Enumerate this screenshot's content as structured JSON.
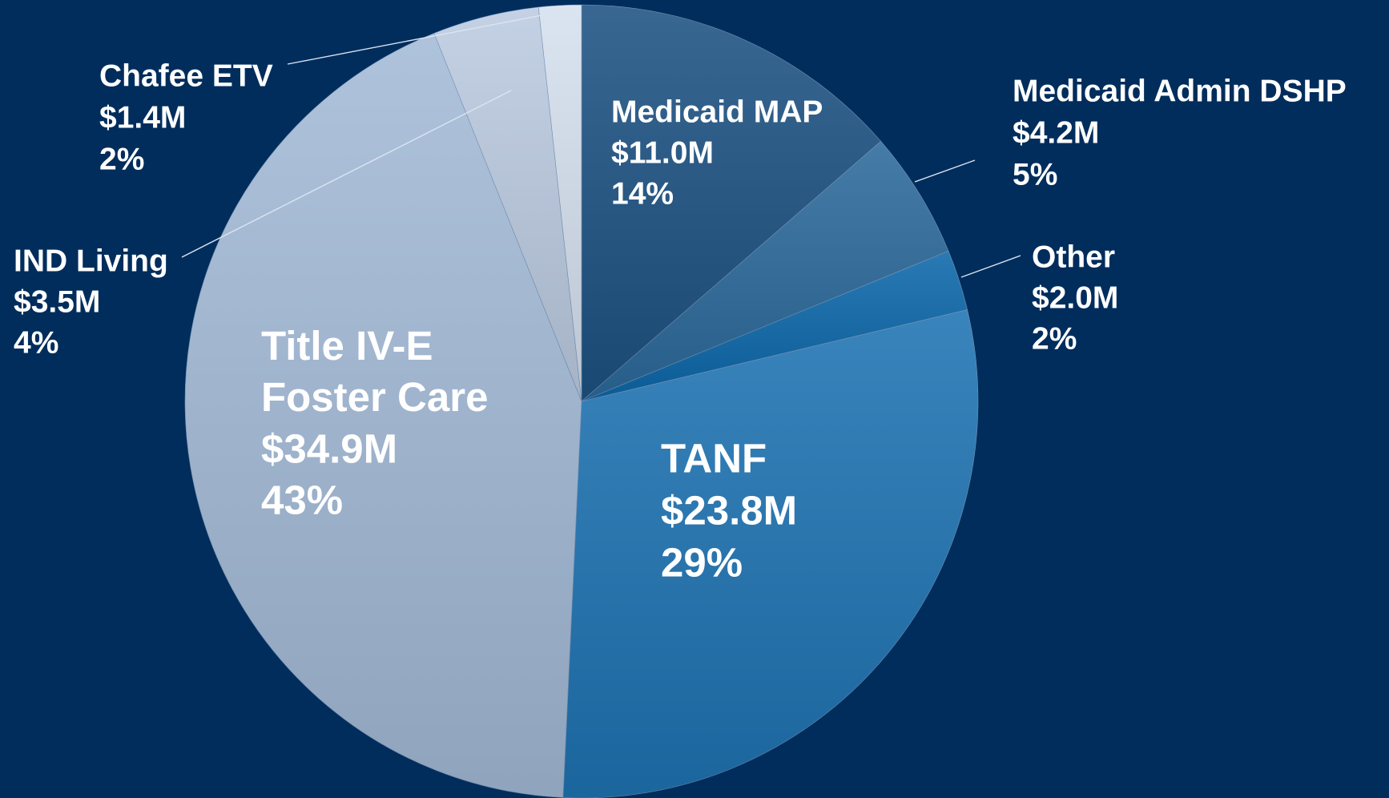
{
  "chart_data": {
    "type": "pie",
    "categories": [
      "Medicaid MAP",
      "Medicaid Admin DSHP",
      "Other",
      "TANF",
      "Title IV-E Foster Care",
      "IND Living",
      "Chafee ETV"
    ],
    "values": [
      11.0,
      4.2,
      2.0,
      23.8,
      34.9,
      3.5,
      1.4
    ],
    "value_labels": [
      "$11.0M",
      "$4.2M",
      "$2.0M",
      "$23.8M",
      "$34.9M",
      "$3.5M",
      "$1.4M"
    ],
    "percent_labels": [
      "14%",
      "5%",
      "2%",
      "29%",
      "43%",
      "4%",
      "2%"
    ],
    "colors": [
      "#1d5283",
      "#2c6a9b",
      "#0c68aa",
      "#1f73b3",
      "#a3bad7",
      "#bccbe1",
      "#d6e0ef"
    ]
  }
}
